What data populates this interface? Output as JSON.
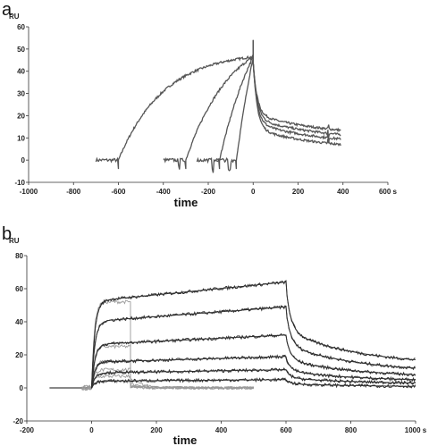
{
  "chart_data": [
    {
      "panel": "a",
      "type": "line",
      "ylabel": "RU",
      "xlabel": "time",
      "x_unit": "s",
      "xlim": [
        -1000,
        600
      ],
      "ylim": [
        -10,
        60
      ],
      "xticks": [
        -1000,
        -800,
        -600,
        -400,
        -200,
        0,
        200,
        400,
        600
      ],
      "xtick_labels": [
        "-1000",
        "-800",
        "-600",
        "-400",
        "-200",
        "0",
        "200",
        "400",
        "600 s"
      ],
      "yticks": [
        -10,
        0,
        10,
        20,
        30,
        40,
        50,
        60
      ],
      "ytick_labels": [
        "-10",
        "0",
        "10",
        "20",
        "30",
        "40",
        "50",
        "60"
      ],
      "grid": false,
      "series": [
        {
          "injection_start": -600,
          "baseline_from": -700,
          "dissoc_end": 13.5
        },
        {
          "injection_start": -300,
          "baseline_from": -400,
          "dissoc_end": 11.5
        },
        {
          "injection_start": -150,
          "baseline_from": -250,
          "dissoc_end": 9.5
        },
        {
          "injection_start": -75,
          "baseline_from": -170,
          "dissoc_end": 7.0
        }
      ],
      "plateau_at_0": 46.5,
      "dissoc_end_x": 390
    },
    {
      "panel": "b",
      "type": "line",
      "ylabel": "RU",
      "xlabel": "time",
      "x_unit": "s",
      "xlim": [
        -200,
        1000
      ],
      "ylim": [
        -20,
        80
      ],
      "xticks": [
        -200,
        0,
        200,
        400,
        600,
        800,
        1000
      ],
      "xtick_labels": [
        "-200",
        "0",
        "200",
        "400",
        "600",
        "800",
        "1000 s"
      ],
      "yticks": [
        -20,
        0,
        20,
        40,
        60,
        80
      ],
      "ytick_labels": [
        "-20",
        "0",
        "20",
        "40",
        "60",
        "80"
      ],
      "grid": false,
      "long_injection_series": [
        {
          "plateau_end": 64,
          "dissoc_end": 17
        },
        {
          "plateau_end": 49,
          "dissoc_end": 12
        },
        {
          "plateau_end": 32,
          "dissoc_end": 8
        },
        {
          "plateau_end": 19,
          "dissoc_end": 5
        },
        {
          "plateau_end": 11,
          "dissoc_end": 3
        },
        {
          "plateau_end": 5,
          "dissoc_end": 1
        }
      ],
      "short_injection_series": [
        {
          "plateau": 52
        },
        {
          "plateau": 25
        },
        {
          "plateau": 16
        },
        {
          "plateau": 11
        },
        {
          "plateau": 7
        },
        {
          "plateau": 4
        }
      ],
      "injection_start": 0,
      "long_injection_end": 600,
      "short_injection_end": 120,
      "long_series_end_x": 1000,
      "short_series_end_x": 500
    }
  ],
  "panels": {
    "a": {
      "letter": "a",
      "unit_label": "RU",
      "xlabel": "time"
    },
    "b": {
      "letter": "b",
      "unit_label": "RU",
      "xlabel": "time"
    }
  },
  "colors": {
    "panel_a_trace": "#555555",
    "panel_b_data": "#333333",
    "panel_b_fit": "#111111",
    "panel_b_short": "#9a9a9a"
  }
}
